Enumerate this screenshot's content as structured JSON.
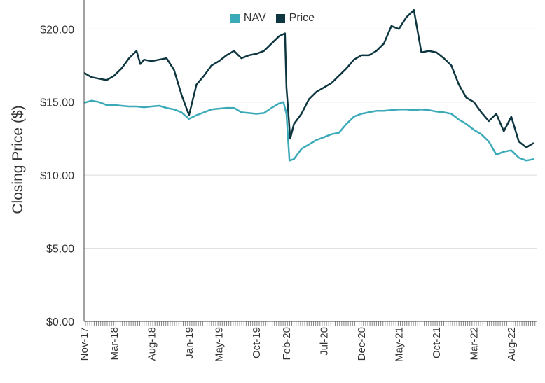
{
  "chart_data": {
    "type": "line",
    "ylabel": "Closing Price ($)",
    "ylim": [
      0,
      21.5
    ],
    "yticks": [
      0,
      5,
      10,
      15,
      20
    ],
    "ytick_labels": [
      "$0.00",
      "$5.00",
      "$10.00",
      "$15.00",
      "$20.00"
    ],
    "grid": true,
    "legend_position": "top-center",
    "x_tick_labels": [
      "Nov-17",
      "Mar-18",
      "Aug-18",
      "Jan-19",
      "May-19",
      "Oct-19",
      "Feb-20",
      "Jul-20",
      "Dec-20",
      "May-21",
      "Oct-21",
      "Mar-22",
      "Aug-22"
    ],
    "x_tick_months": [
      0,
      4,
      9,
      14,
      18,
      23,
      27,
      32,
      37,
      42,
      47,
      52,
      57
    ],
    "x_range_months": [
      0,
      60
    ],
    "series": [
      {
        "name": "NAV",
        "color": "#3AAAB8",
        "points": [
          [
            0,
            14.95
          ],
          [
            1,
            15.1
          ],
          [
            2,
            15.0
          ],
          [
            3,
            14.8
          ],
          [
            4,
            14.8
          ],
          [
            5,
            14.75
          ],
          [
            6,
            14.7
          ],
          [
            7,
            14.7
          ],
          [
            8,
            14.65
          ],
          [
            9,
            14.7
          ],
          [
            10,
            14.75
          ],
          [
            11,
            14.6
          ],
          [
            12,
            14.5
          ],
          [
            13,
            14.3
          ],
          [
            14,
            13.85
          ],
          [
            15,
            14.1
          ],
          [
            16,
            14.3
          ],
          [
            17,
            14.5
          ],
          [
            18,
            14.55
          ],
          [
            19,
            14.6
          ],
          [
            20,
            14.6
          ],
          [
            21,
            14.3
          ],
          [
            22,
            14.25
          ],
          [
            23,
            14.2
          ],
          [
            24,
            14.25
          ],
          [
            25,
            14.6
          ],
          [
            26,
            14.9
          ],
          [
            26.6,
            15.0
          ],
          [
            27,
            14.2
          ],
          [
            27.4,
            11.0
          ],
          [
            28,
            11.1
          ],
          [
            29,
            11.8
          ],
          [
            30,
            12.1
          ],
          [
            31,
            12.4
          ],
          [
            32,
            12.6
          ],
          [
            33,
            12.8
          ],
          [
            34,
            12.9
          ],
          [
            35,
            13.5
          ],
          [
            36,
            14.0
          ],
          [
            37,
            14.2
          ],
          [
            38,
            14.3
          ],
          [
            39,
            14.4
          ],
          [
            40,
            14.4
          ],
          [
            41,
            14.45
          ],
          [
            42,
            14.5
          ],
          [
            43,
            14.5
          ],
          [
            44,
            14.45
          ],
          [
            45,
            14.5
          ],
          [
            46,
            14.45
          ],
          [
            47,
            14.35
          ],
          [
            48,
            14.3
          ],
          [
            49,
            14.2
          ],
          [
            50,
            13.8
          ],
          [
            51,
            13.5
          ],
          [
            52,
            13.1
          ],
          [
            53,
            12.8
          ],
          [
            54,
            12.3
          ],
          [
            55,
            11.4
          ],
          [
            56,
            11.6
          ],
          [
            57,
            11.7
          ],
          [
            58,
            11.2
          ],
          [
            59,
            11.0
          ],
          [
            60,
            11.1
          ]
        ]
      },
      {
        "name": "Price",
        "color": "#0D3640",
        "points": [
          [
            0,
            17.0
          ],
          [
            1,
            16.7
          ],
          [
            2,
            16.6
          ],
          [
            3,
            16.5
          ],
          [
            4,
            16.8
          ],
          [
            5,
            17.3
          ],
          [
            6,
            18.0
          ],
          [
            7,
            18.5
          ],
          [
            7.5,
            17.6
          ],
          [
            8,
            17.9
          ],
          [
            9,
            17.8
          ],
          [
            10,
            17.9
          ],
          [
            11,
            18.0
          ],
          [
            12,
            17.2
          ],
          [
            13,
            15.5
          ],
          [
            14,
            14.1
          ],
          [
            15,
            16.2
          ],
          [
            16,
            16.8
          ],
          [
            17,
            17.5
          ],
          [
            18,
            17.8
          ],
          [
            19,
            18.2
          ],
          [
            20,
            18.5
          ],
          [
            21,
            18.0
          ],
          [
            22,
            18.2
          ],
          [
            23,
            18.3
          ],
          [
            24,
            18.5
          ],
          [
            25,
            19.0
          ],
          [
            26,
            19.5
          ],
          [
            26.8,
            19.7
          ],
          [
            27,
            16.0
          ],
          [
            27.5,
            12.5
          ],
          [
            28,
            13.5
          ],
          [
            29,
            14.2
          ],
          [
            30,
            15.2
          ],
          [
            31,
            15.7
          ],
          [
            32,
            16.0
          ],
          [
            33,
            16.3
          ],
          [
            34,
            16.8
          ],
          [
            35,
            17.3
          ],
          [
            36,
            17.9
          ],
          [
            37,
            18.2
          ],
          [
            38,
            18.2
          ],
          [
            39,
            18.5
          ],
          [
            40,
            19.0
          ],
          [
            41,
            20.2
          ],
          [
            42,
            20.0
          ],
          [
            43,
            20.8
          ],
          [
            44,
            21.3
          ],
          [
            45,
            18.4
          ],
          [
            46,
            18.5
          ],
          [
            47,
            18.4
          ],
          [
            48,
            18.0
          ],
          [
            49,
            17.5
          ],
          [
            50,
            16.2
          ],
          [
            51,
            15.3
          ],
          [
            52,
            15.0
          ],
          [
            53,
            14.3
          ],
          [
            54,
            13.7
          ],
          [
            55,
            14.2
          ],
          [
            56,
            13.0
          ],
          [
            57,
            14.0
          ],
          [
            58,
            12.3
          ],
          [
            59,
            11.9
          ],
          [
            60,
            12.2
          ]
        ]
      }
    ]
  }
}
